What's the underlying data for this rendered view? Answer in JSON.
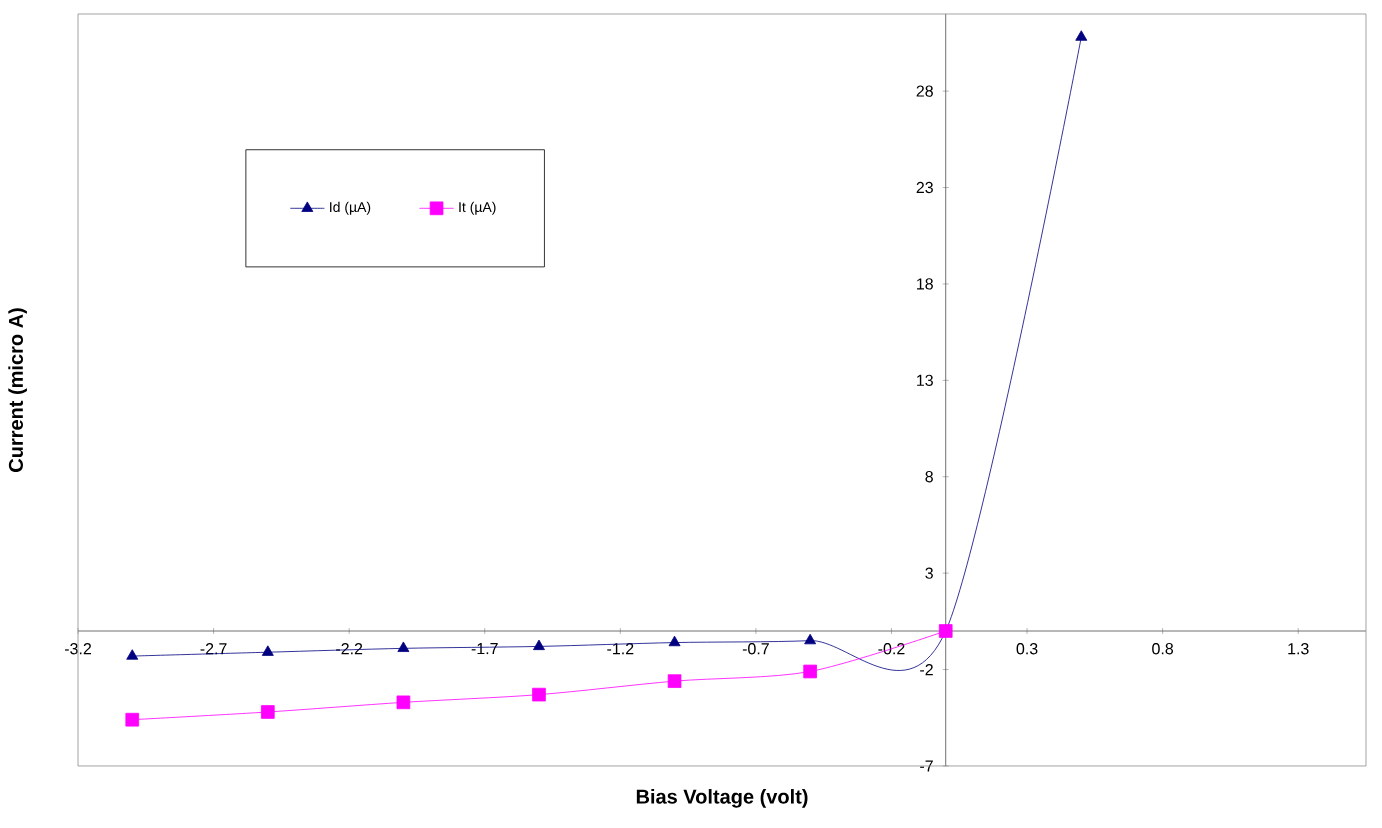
{
  "chart_data": {
    "type": "line",
    "xlabel": "Bias Voltage (volt)",
    "ylabel": "Current (micro A)",
    "x": [
      -3,
      -2.5,
      -2,
      -1.5,
      -1,
      -0.5,
      0,
      0.5
    ],
    "series": [
      {
        "name": "Id (µA)",
        "color": "#000080",
        "marker": "triangle",
        "values": [
          -1.3,
          -1.1,
          -0.9,
          -0.8,
          -0.6,
          -0.5,
          0,
          30.8
        ]
      },
      {
        "name": "It (µA)",
        "color": "#ff00ff",
        "marker": "square",
        "values": [
          -4.6,
          -4.2,
          -3.7,
          -3.3,
          -2.6,
          -2.1,
          0,
          null
        ]
      }
    ],
    "xlim": [
      -3.2,
      1.55
    ],
    "xticks": [
      -3.2,
      -2.7,
      -2.2,
      -1.7,
      -1.2,
      -0.7,
      -0.2,
      0.3,
      0.8,
      1.3
    ],
    "ylim": [
      -7,
      32
    ],
    "yticks": [
      -7,
      -2,
      3,
      8,
      13,
      18,
      23,
      28
    ],
    "grid": false,
    "legend": "top left",
    "line_style": "solid"
  }
}
